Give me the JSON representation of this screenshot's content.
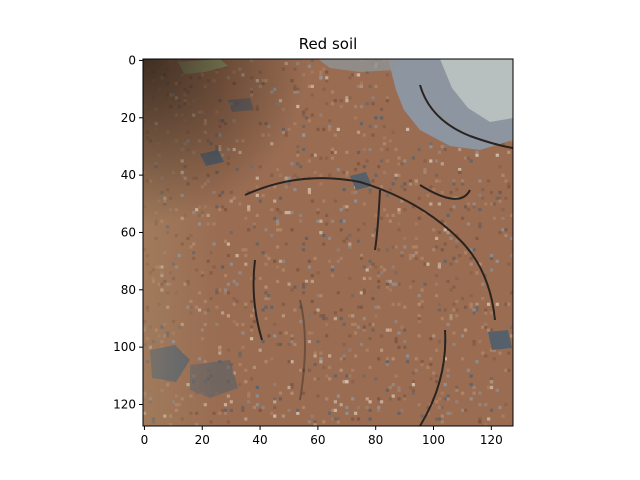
{
  "figure": {
    "title": "Red soil",
    "image_size": [
      128,
      128
    ],
    "x_ticks": [
      0,
      20,
      40,
      60,
      80,
      100,
      120
    ],
    "y_ticks": [
      0,
      20,
      40,
      60,
      80,
      100,
      120
    ],
    "colors": {
      "soil_base": "#9a6d52",
      "soil_dark": "#7a5340",
      "soil_light": "#b58a6c",
      "rock_grey": "#8d96a0",
      "rock_dark": "#56606a",
      "crack": "#2a2420",
      "moss": "#9aa070"
    }
  }
}
